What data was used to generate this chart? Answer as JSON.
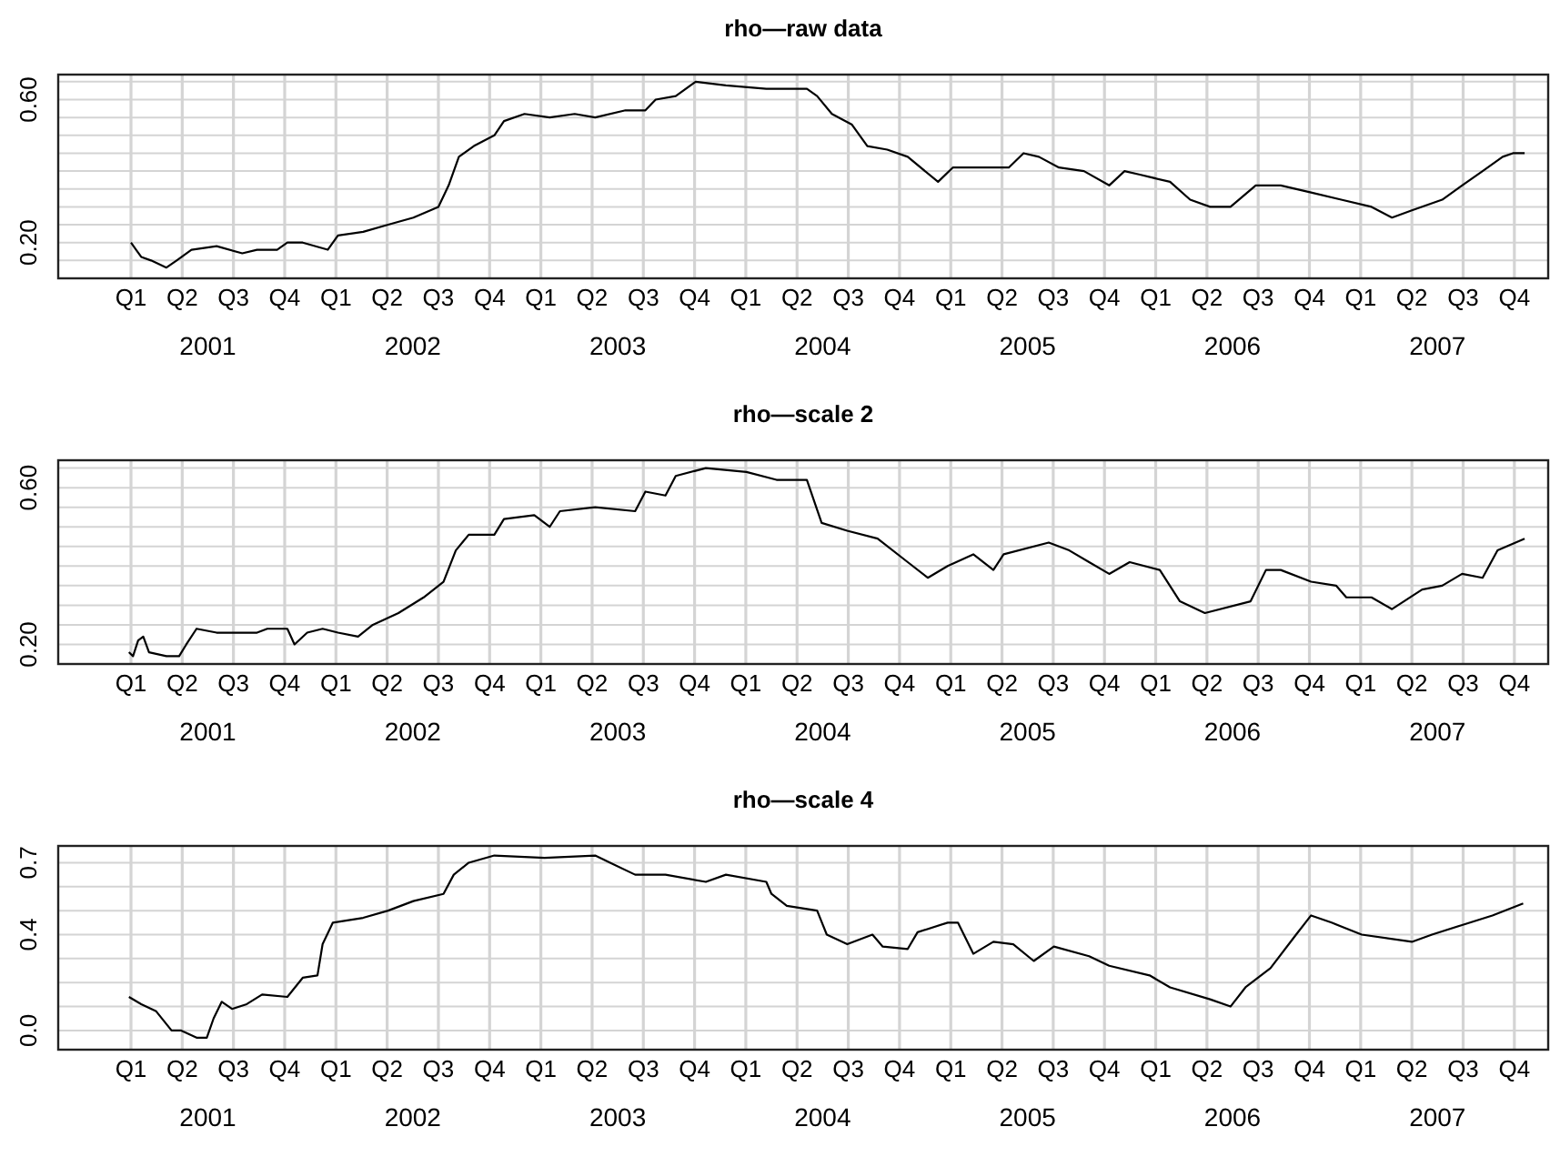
{
  "chart_data": [
    {
      "type": "line",
      "title": "rho—raw data",
      "grid": true,
      "xlim": [
        2000.77,
        2008.04
      ],
      "ylim": [
        0.1,
        0.67
      ],
      "xticks": [
        {
          "value": 2001.5,
          "label": "2001"
        },
        {
          "value": 2002.5,
          "label": "2002"
        },
        {
          "value": 2003.5,
          "label": "2003"
        },
        {
          "value": 2004.5,
          "label": "2004"
        },
        {
          "value": 2005.5,
          "label": "2005"
        },
        {
          "value": 2006.5,
          "label": "2006"
        },
        {
          "value": 2007.5,
          "label": "2007"
        },
        {
          "value": 2001.125,
          "label": null
        },
        {
          "value": 2001.375,
          "label": null
        },
        {
          "value": 2001.625,
          "label": null
        },
        {
          "value": 2001.875,
          "label": null
        },
        {
          "value": 2002.125,
          "label": null
        },
        {
          "value": 2002.375,
          "label": null
        },
        {
          "value": 2002.625,
          "label": null
        },
        {
          "value": 2002.875,
          "label": null
        },
        {
          "value": 2003.125,
          "label": null
        },
        {
          "value": 2003.375,
          "label": null
        },
        {
          "value": 2003.625,
          "label": null
        },
        {
          "value": 2003.875,
          "label": null
        },
        {
          "value": 2004.125,
          "label": null
        },
        {
          "value": 2004.375,
          "label": null
        },
        {
          "value": 2004.625,
          "label": null
        },
        {
          "value": 2004.875,
          "label": null
        },
        {
          "value": 2005.125,
          "label": null
        },
        {
          "value": 2005.375,
          "label": null
        },
        {
          "value": 2005.625,
          "label": null
        },
        {
          "value": 2005.875,
          "label": null
        },
        {
          "value": 2006.125,
          "label": null
        },
        {
          "value": 2006.375,
          "label": null
        },
        {
          "value": 2006.625,
          "label": null
        },
        {
          "value": 2006.875,
          "label": null
        },
        {
          "value": 2007.125,
          "label": null
        },
        {
          "value": 2007.375,
          "label": null
        },
        {
          "value": 2007.625,
          "label": null
        },
        {
          "value": 2007.875,
          "label": null
        }
      ],
      "annotations": [
        "Q1",
        "Q2",
        "Q3",
        "Q4",
        "Q1",
        "Q2",
        "Q3",
        "Q4",
        "Q1",
        "Q2",
        "Q3",
        "Q4",
        "Q1",
        "Q2",
        "Q3",
        "Q4",
        "Q1",
        "Q2",
        "Q3",
        "Q4",
        "Q1",
        "Q2",
        "Q3",
        "Q4",
        "Q1",
        "Q2",
        "Q3",
        "Q4"
      ],
      "yticks": [
        {
          "value": 0.15,
          "label": null
        },
        {
          "value": 0.2,
          "label": "0.20"
        },
        {
          "value": 0.25,
          "label": null
        },
        {
          "value": 0.3,
          "label": null
        },
        {
          "value": 0.35,
          "label": null
        },
        {
          "value": 0.4,
          "label": null
        },
        {
          "value": 0.45,
          "label": null
        },
        {
          "value": 0.5,
          "label": null
        },
        {
          "value": 0.55,
          "label": null
        },
        {
          "value": 0.6,
          "label": "0.60"
        },
        {
          "value": 0.65,
          "label": null
        }
      ],
      "series": [
        {
          "color": "#000000",
          "x": [
            2001.125,
            2001.15,
            2001.175,
            2001.223,
            2001.298,
            2001.348,
            2001.42,
            2001.543,
            2001.668,
            2001.74,
            2001.838,
            2001.888,
            2001.963,
            2002.085,
            2002.135,
            2002.258,
            2002.38,
            2002.503,
            2002.625,
            2002.675,
            2002.725,
            2002.798,
            2002.898,
            2002.945,
            2003.045,
            2003.168,
            2003.29,
            2003.39,
            2003.538,
            2003.635,
            2003.685,
            2003.783,
            2003.88,
            2004.028,
            2004.225,
            2004.423,
            2004.473,
            2004.545,
            2004.643,
            2004.718,
            2004.815,
            2004.915,
            2005.063,
            2005.135,
            2005.308,
            2005.408,
            2005.48,
            2005.555,
            2005.653,
            2005.775,
            2005.898,
            2005.973,
            2006.048,
            2006.195,
            2006.293,
            2006.39,
            2006.49,
            2006.613,
            2006.735,
            2006.883,
            2007.03,
            2007.178,
            2007.278,
            2007.375,
            2007.523,
            2007.62,
            2007.72,
            2007.818,
            2007.868,
            2007.925
          ],
          "values": [
            0.2,
            0.18,
            0.16,
            0.15,
            0.13,
            0.15,
            0.18,
            0.19,
            0.17,
            0.18,
            0.18,
            0.2,
            0.2,
            0.18,
            0.22,
            0.23,
            0.25,
            0.27,
            0.3,
            0.36,
            0.44,
            0.47,
            0.5,
            0.54,
            0.56,
            0.55,
            0.56,
            0.55,
            0.57,
            0.57,
            0.6,
            0.61,
            0.65,
            0.64,
            0.63,
            0.63,
            0.61,
            0.56,
            0.53,
            0.47,
            0.46,
            0.44,
            0.37,
            0.41,
            0.41,
            0.41,
            0.45,
            0.44,
            0.41,
            0.4,
            0.36,
            0.4,
            0.39,
            0.37,
            0.32,
            0.3,
            0.3,
            0.36,
            0.36,
            0.34,
            0.32,
            0.3,
            0.27,
            0.29,
            0.32,
            0.36,
            0.4,
            0.44,
            0.45,
            0.45
          ]
        }
      ]
    },
    {
      "type": "line",
      "title": "rho—scale 2",
      "grid": true,
      "xlim": [
        2000.77,
        2008.04
      ],
      "ylim": [
        0.15,
        0.67
      ],
      "xticks": [
        {
          "value": 2001.5,
          "label": "2001"
        },
        {
          "value": 2002.5,
          "label": "2002"
        },
        {
          "value": 2003.5,
          "label": "2003"
        },
        {
          "value": 2004.5,
          "label": "2004"
        },
        {
          "value": 2005.5,
          "label": "2005"
        },
        {
          "value": 2006.5,
          "label": "2006"
        },
        {
          "value": 2007.5,
          "label": "2007"
        },
        {
          "value": 2001.125,
          "label": null
        },
        {
          "value": 2001.375,
          "label": null
        },
        {
          "value": 2001.625,
          "label": null
        },
        {
          "value": 2001.875,
          "label": null
        },
        {
          "value": 2002.125,
          "label": null
        },
        {
          "value": 2002.375,
          "label": null
        },
        {
          "value": 2002.625,
          "label": null
        },
        {
          "value": 2002.875,
          "label": null
        },
        {
          "value": 2003.125,
          "label": null
        },
        {
          "value": 2003.375,
          "label": null
        },
        {
          "value": 2003.625,
          "label": null
        },
        {
          "value": 2003.875,
          "label": null
        },
        {
          "value": 2004.125,
          "label": null
        },
        {
          "value": 2004.375,
          "label": null
        },
        {
          "value": 2004.625,
          "label": null
        },
        {
          "value": 2004.875,
          "label": null
        },
        {
          "value": 2005.125,
          "label": null
        },
        {
          "value": 2005.375,
          "label": null
        },
        {
          "value": 2005.625,
          "label": null
        },
        {
          "value": 2005.875,
          "label": null
        },
        {
          "value": 2006.125,
          "label": null
        },
        {
          "value": 2006.375,
          "label": null
        },
        {
          "value": 2006.625,
          "label": null
        },
        {
          "value": 2006.875,
          "label": null
        },
        {
          "value": 2007.125,
          "label": null
        },
        {
          "value": 2007.375,
          "label": null
        },
        {
          "value": 2007.625,
          "label": null
        },
        {
          "value": 2007.875,
          "label": null
        }
      ],
      "annotations": [
        "Q1",
        "Q2",
        "Q3",
        "Q4",
        "Q1",
        "Q2",
        "Q3",
        "Q4",
        "Q1",
        "Q2",
        "Q3",
        "Q4",
        "Q1",
        "Q2",
        "Q3",
        "Q4",
        "Q1",
        "Q2",
        "Q3",
        "Q4",
        "Q1",
        "Q2",
        "Q3",
        "Q4",
        "Q1",
        "Q2",
        "Q3",
        "Q4"
      ],
      "yticks": [
        {
          "value": 0.2,
          "label": "0.20"
        },
        {
          "value": 0.25,
          "label": null
        },
        {
          "value": 0.3,
          "label": null
        },
        {
          "value": 0.35,
          "label": null
        },
        {
          "value": 0.4,
          "label": null
        },
        {
          "value": 0.45,
          "label": null
        },
        {
          "value": 0.5,
          "label": null
        },
        {
          "value": 0.55,
          "label": null
        },
        {
          "value": 0.6,
          "label": "0.60"
        },
        {
          "value": 0.65,
          "label": null
        }
      ],
      "series": [
        {
          "color": "#000000",
          "x": [
            2001.115,
            2001.135,
            2001.16,
            2001.185,
            2001.213,
            2001.298,
            2001.36,
            2001.395,
            2001.445,
            2001.543,
            2001.668,
            2001.74,
            2001.79,
            2001.888,
            2001.923,
            2001.985,
            2002.06,
            2002.135,
            2002.233,
            2002.305,
            2002.43,
            2002.553,
            2002.65,
            2002.71,
            2002.773,
            2002.898,
            2002.945,
            2003.093,
            2003.168,
            2003.218,
            2003.39,
            2003.585,
            2003.635,
            2003.733,
            2003.783,
            2003.93,
            2004.128,
            2004.275,
            2004.423,
            2004.495,
            2004.62,
            2004.768,
            2004.915,
            2005.013,
            2005.11,
            2005.235,
            2005.333,
            2005.383,
            2005.603,
            2005.703,
            2005.8,
            2005.898,
            2005.998,
            2006.145,
            2006.243,
            2006.365,
            2006.588,
            2006.663,
            2006.735,
            2006.883,
            2007.005,
            2007.055,
            2007.178,
            2007.278,
            2007.425,
            2007.523,
            2007.62,
            2007.72,
            2007.793,
            2007.925
          ],
          "values": [
            0.18,
            0.17,
            0.21,
            0.22,
            0.18,
            0.17,
            0.17,
            0.2,
            0.24,
            0.23,
            0.23,
            0.23,
            0.24,
            0.24,
            0.2,
            0.23,
            0.24,
            0.23,
            0.22,
            0.25,
            0.28,
            0.32,
            0.36,
            0.44,
            0.48,
            0.48,
            0.52,
            0.53,
            0.5,
            0.54,
            0.55,
            0.54,
            0.59,
            0.58,
            0.63,
            0.65,
            0.64,
            0.62,
            0.62,
            0.51,
            0.49,
            0.47,
            0.41,
            0.37,
            0.4,
            0.43,
            0.39,
            0.43,
            0.46,
            0.44,
            0.41,
            0.38,
            0.41,
            0.39,
            0.31,
            0.28,
            0.31,
            0.39,
            0.39,
            0.36,
            0.35,
            0.32,
            0.32,
            0.29,
            0.34,
            0.35,
            0.38,
            0.37,
            0.44,
            0.47
          ]
        }
      ]
    },
    {
      "type": "line",
      "title": "rho—scale 4",
      "grid": true,
      "xlim": [
        2000.77,
        2008.04
      ],
      "ylim": [
        -0.08,
        0.77
      ],
      "xticks": [
        {
          "value": 2001.5,
          "label": "2001"
        },
        {
          "value": 2002.5,
          "label": "2002"
        },
        {
          "value": 2003.5,
          "label": "2003"
        },
        {
          "value": 2004.5,
          "label": "2004"
        },
        {
          "value": 2005.5,
          "label": "2005"
        },
        {
          "value": 2006.5,
          "label": "2006"
        },
        {
          "value": 2007.5,
          "label": "2007"
        },
        {
          "value": 2001.125,
          "label": null
        },
        {
          "value": 2001.375,
          "label": null
        },
        {
          "value": 2001.625,
          "label": null
        },
        {
          "value": 2001.875,
          "label": null
        },
        {
          "value": 2002.125,
          "label": null
        },
        {
          "value": 2002.375,
          "label": null
        },
        {
          "value": 2002.625,
          "label": null
        },
        {
          "value": 2002.875,
          "label": null
        },
        {
          "value": 2003.125,
          "label": null
        },
        {
          "value": 2003.375,
          "label": null
        },
        {
          "value": 2003.625,
          "label": null
        },
        {
          "value": 2003.875,
          "label": null
        },
        {
          "value": 2004.125,
          "label": null
        },
        {
          "value": 2004.375,
          "label": null
        },
        {
          "value": 2004.625,
          "label": null
        },
        {
          "value": 2004.875,
          "label": null
        },
        {
          "value": 2005.125,
          "label": null
        },
        {
          "value": 2005.375,
          "label": null
        },
        {
          "value": 2005.625,
          "label": null
        },
        {
          "value": 2005.875,
          "label": null
        },
        {
          "value": 2006.125,
          "label": null
        },
        {
          "value": 2006.375,
          "label": null
        },
        {
          "value": 2006.625,
          "label": null
        },
        {
          "value": 2006.875,
          "label": null
        },
        {
          "value": 2007.125,
          "label": null
        },
        {
          "value": 2007.375,
          "label": null
        },
        {
          "value": 2007.625,
          "label": null
        },
        {
          "value": 2007.875,
          "label": null
        }
      ],
      "annotations": [
        "Q1",
        "Q2",
        "Q3",
        "Q4",
        "Q1",
        "Q2",
        "Q3",
        "Q4",
        "Q1",
        "Q2",
        "Q3",
        "Q4",
        "Q1",
        "Q2",
        "Q3",
        "Q4",
        "Q1",
        "Q2",
        "Q3",
        "Q4",
        "Q1",
        "Q2",
        "Q3",
        "Q4",
        "Q1",
        "Q2",
        "Q3",
        "Q4"
      ],
      "yticks": [
        {
          "value": 0,
          "label": "0.0"
        },
        {
          "value": 0.1,
          "label": null
        },
        {
          "value": 0.2,
          "label": null
        },
        {
          "value": 0.3,
          "label": null
        },
        {
          "value": 0.4,
          "label": "0.4"
        },
        {
          "value": 0.5,
          "label": null
        },
        {
          "value": 0.6,
          "label": null
        },
        {
          "value": 0.7,
          "label": "0.7"
        }
      ],
      "series": [
        {
          "color": "#000000",
          "x": [
            2001.115,
            2001.175,
            2001.248,
            2001.323,
            2001.37,
            2001.445,
            2001.495,
            2001.528,
            2001.568,
            2001.618,
            2001.69,
            2001.765,
            2001.888,
            2001.963,
            2002.035,
            2002.06,
            2002.11,
            2002.258,
            2002.38,
            2002.503,
            2002.65,
            2002.7,
            2002.773,
            2002.898,
            2003.143,
            2003.39,
            2003.463,
            2003.585,
            2003.733,
            2003.93,
            2004.028,
            2004.225,
            2004.25,
            2004.325,
            2004.473,
            2004.52,
            2004.62,
            2004.743,
            2004.793,
            2004.915,
            2004.963,
            2005.11,
            2005.16,
            2005.235,
            2005.333,
            2005.43,
            2005.53,
            2005.628,
            2005.8,
            2005.898,
            2006.095,
            2006.195,
            2006.39,
            2006.49,
            2006.563,
            2006.685,
            2006.81,
            2006.883,
            2006.983,
            2007.13,
            2007.375,
            2007.473,
            2007.62,
            2007.768,
            2007.918
          ],
          "values": [
            0.14,
            0.11,
            0.08,
            0,
            0,
            -0.03,
            -0.03,
            0.05,
            0.12,
            0.09,
            0.11,
            0.15,
            0.14,
            0.22,
            0.23,
            0.36,
            0.45,
            0.47,
            0.5,
            0.54,
            0.57,
            0.65,
            0.7,
            0.73,
            0.72,
            0.73,
            0.7,
            0.65,
            0.65,
            0.62,
            0.65,
            0.62,
            0.57,
            0.52,
            0.5,
            0.4,
            0.36,
            0.4,
            0.35,
            0.34,
            0.41,
            0.45,
            0.45,
            0.32,
            0.37,
            0.36,
            0.29,
            0.35,
            0.31,
            0.27,
            0.23,
            0.18,
            0.13,
            0.1,
            0.18,
            0.26,
            0.4,
            0.48,
            0.45,
            0.4,
            0.37,
            0.4,
            0.44,
            0.48,
            0.53
          ]
        }
      ]
    }
  ]
}
